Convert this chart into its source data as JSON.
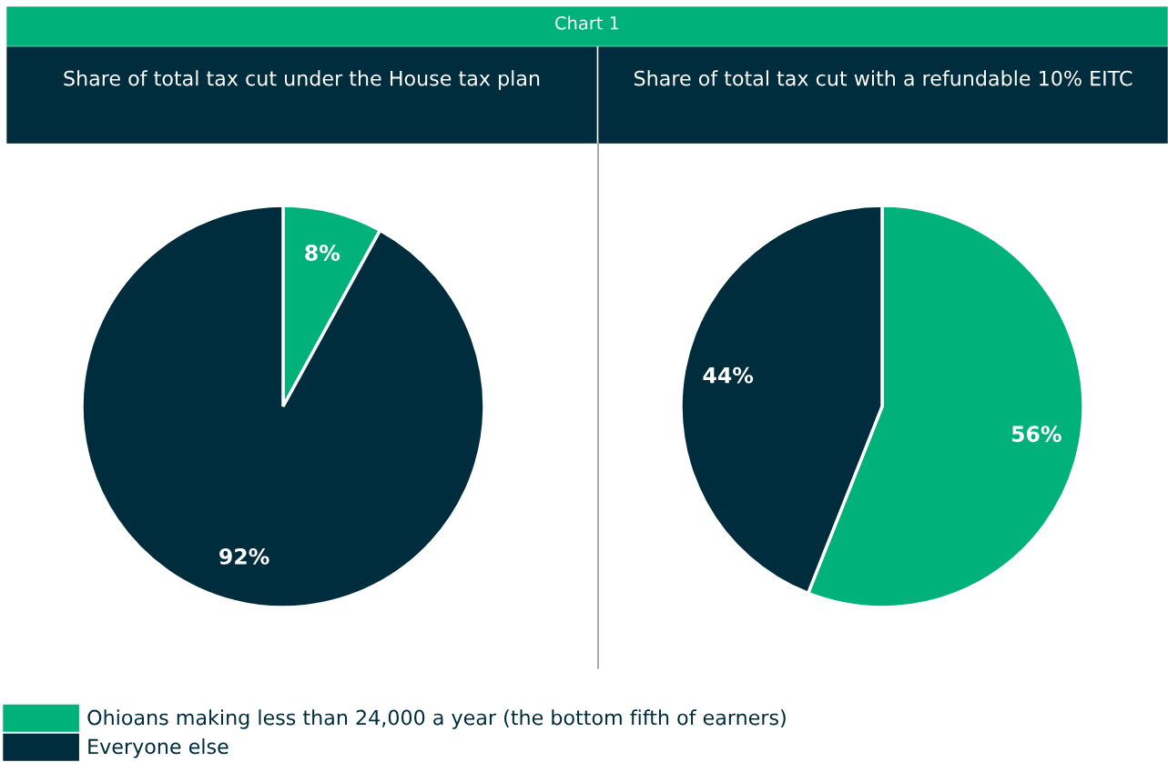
{
  "chart_data": [
    {
      "type": "pie",
      "title": "Share of total tax cut under the House tax plan",
      "annotations": [
        "Chart 1"
      ],
      "categories": [
        "Ohioans making less than 24,000 a year (the bottom fifth of earners)",
        "Everyone else"
      ],
      "values": [
        8,
        92
      ],
      "value_labels": [
        "8%",
        "92%"
      ],
      "colors": [
        "#00b27a",
        "#002d3e"
      ],
      "legend": "bottom right"
    },
    {
      "type": "pie",
      "title": "Share of total tax cut with a refundable 10% EITC",
      "categories": [
        null,
        null
      ],
      "values": [
        56,
        44
      ],
      "value_labels": [
        "56%",
        "44%"
      ],
      "colors": [
        "#00b27a",
        "#002d3e"
      ]
    }
  ]
}
